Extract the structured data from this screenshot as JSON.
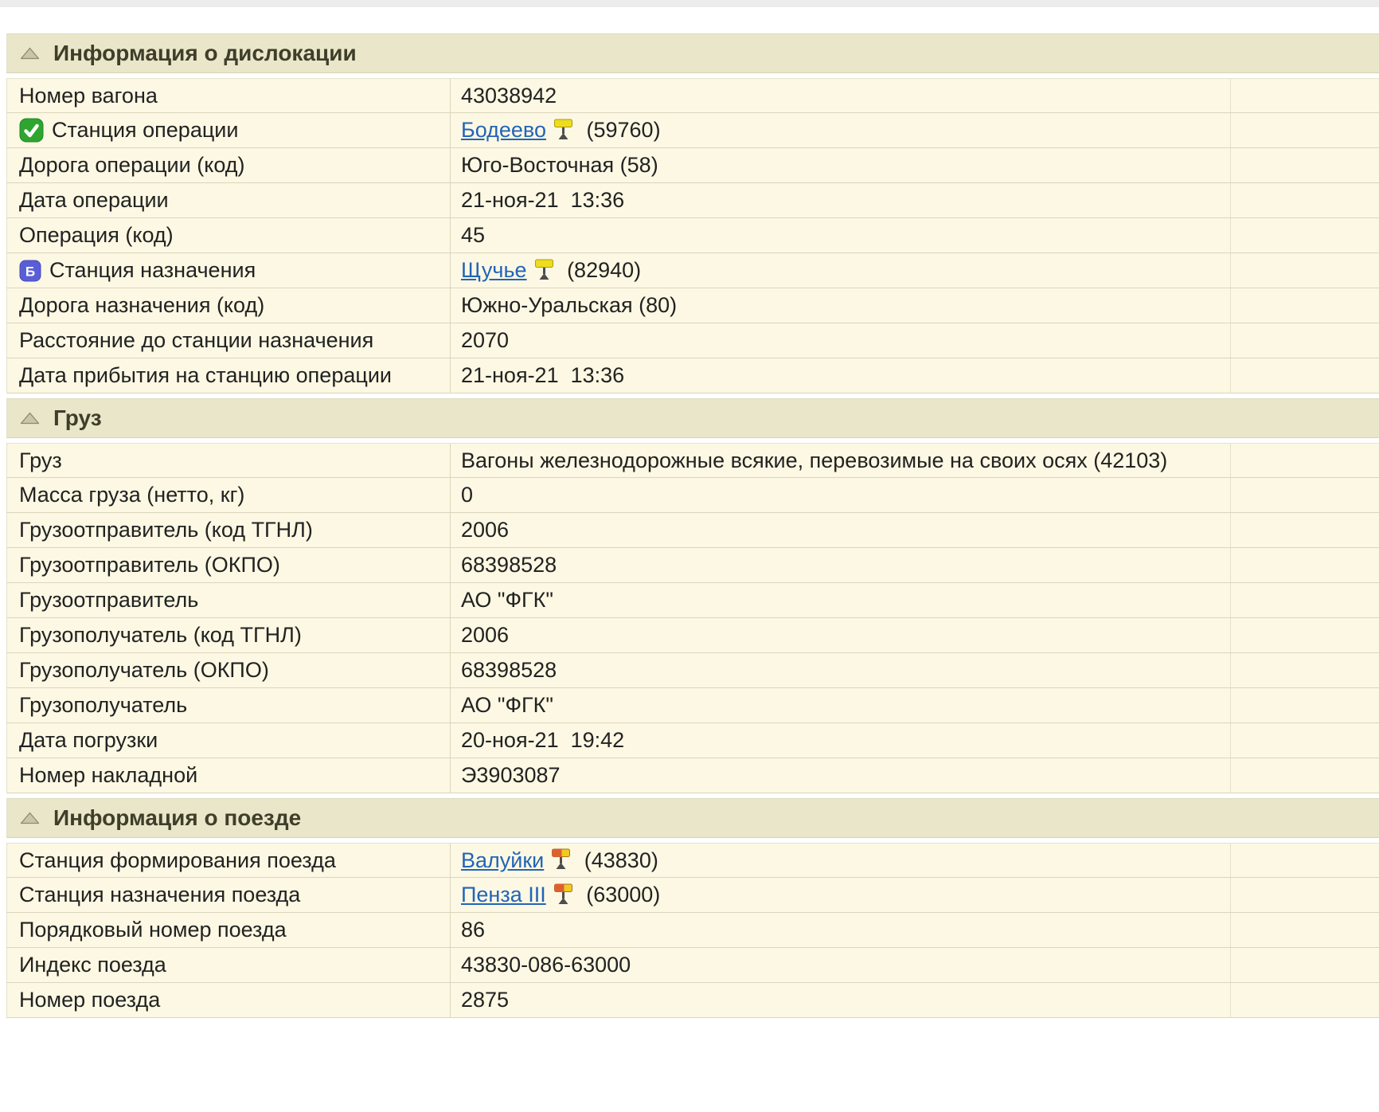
{
  "colors": {
    "row_bg": "#fcf8e3",
    "section_header_bg": "#eae6c9",
    "border": "#d9d6bc",
    "link": "#2264b8",
    "text": "#222222",
    "section_title_text": "#3e3e2a",
    "green_check_icon": "#2ea52f",
    "blue_badge_icon": "#5a5ed6",
    "semaphore_yellow": "#eedc1f",
    "semaphore_red": "#e05f2e"
  },
  "sections": [
    {
      "title": "Информация о дислокации",
      "collapse_icon": "triangle-up",
      "rows": [
        {
          "label": "Номер вагона",
          "value": "43038942"
        },
        {
          "label": "Станция операции",
          "label_icon": "green-check",
          "link": "Бодеево",
          "value_icon": "semaphore-yellow",
          "suffix": "(59760)"
        },
        {
          "label": "Дорога операции (код)",
          "value": "Юго-Восточная (58)"
        },
        {
          "label": "Дата операции",
          "value": "21-ноя-21  13:36"
        },
        {
          "label": "Операция (код)",
          "value": "45"
        },
        {
          "label": "Станция назначения",
          "label_icon": "blue-b",
          "link": "Щучье",
          "value_icon": "semaphore-yellow",
          "suffix": "(82940)"
        },
        {
          "label": "Дорога назначения (код)",
          "value": "Южно-Уральская (80)"
        },
        {
          "label": "Расстояние до станции назначения",
          "value": "2070"
        },
        {
          "label": "Дата прибытия на станцию операции",
          "value": "21-ноя-21  13:36"
        }
      ]
    },
    {
      "title": "Груз",
      "collapse_icon": "triangle-up",
      "rows": [
        {
          "label": "Груз",
          "value": "Вагоны железнодорожные всякие, перевозимые на своих осях (42103)"
        },
        {
          "label": "Масса груза (нетто, кг)",
          "value": "0"
        },
        {
          "label": "Грузоотправитель (код ТГНЛ)",
          "value": "2006"
        },
        {
          "label": "Грузоотправитель (ОКПО)",
          "value": "68398528"
        },
        {
          "label": "Грузоотправитель",
          "value": "АО \"ФГК\""
        },
        {
          "label": "Грузополучатель (код ТГНЛ)",
          "value": "2006"
        },
        {
          "label": "Грузополучатель (ОКПО)",
          "value": "68398528"
        },
        {
          "label": "Грузополучатель",
          "value": "АО \"ФГК\""
        },
        {
          "label": "Дата погрузки",
          "value": "20-ноя-21  19:42"
        },
        {
          "label": "Номер накладной",
          "value": "Э3903087"
        }
      ]
    },
    {
      "title": "Информация о поезде",
      "collapse_icon": "triangle-up",
      "rows": [
        {
          "label": "Станция формирования поезда",
          "link": "Валуйки",
          "value_icon": "semaphore-red",
          "suffix": "(43830)"
        },
        {
          "label": "Станция назначения поезда",
          "link": "Пенза III",
          "value_icon": "semaphore-red",
          "suffix": "(63000)"
        },
        {
          "label": "Порядковый номер поезда",
          "value": "86"
        },
        {
          "label": "Индекс поезда",
          "value": "43830-086-63000"
        },
        {
          "label": "Номер поезда",
          "value": "2875"
        }
      ]
    }
  ]
}
